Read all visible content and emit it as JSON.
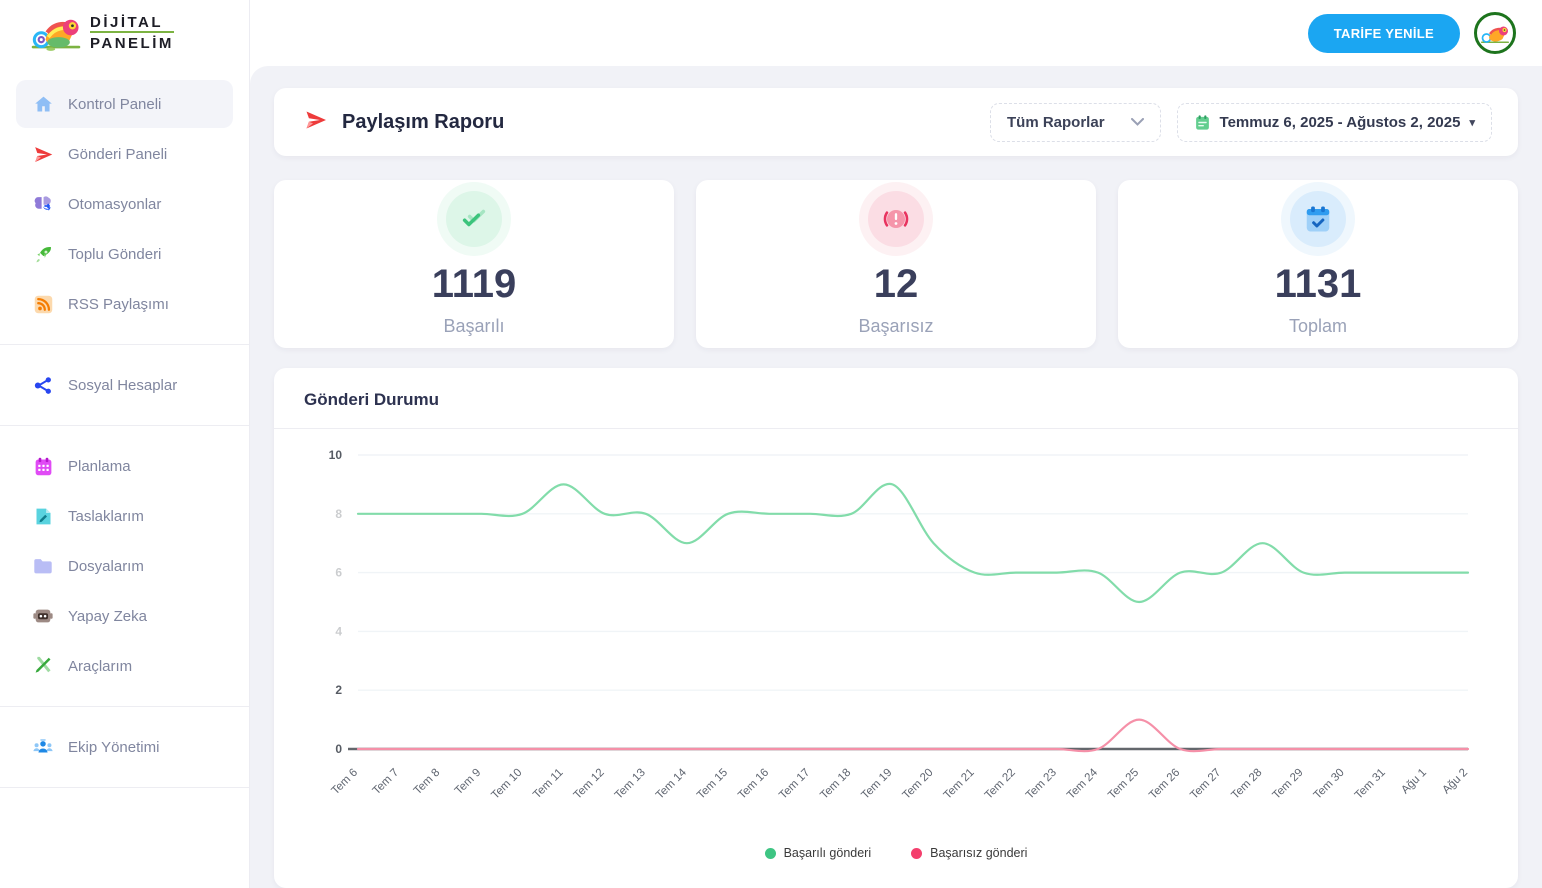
{
  "brand": {
    "line1": "DİJİTAL",
    "line2": "PANELİM"
  },
  "topbar": {
    "renew_button_label": "TARİFE YENİLE"
  },
  "sidebar": {
    "groups": [
      {
        "items": [
          {
            "label": "Kontrol Paneli",
            "icon": "home-icon",
            "active": true
          },
          {
            "label": "Gönderi Paneli",
            "icon": "paper-plane-icon"
          },
          {
            "label": "Otomasyonlar",
            "icon": "brain-automation-icon"
          },
          {
            "label": "Toplu Gönderi",
            "icon": "rocket-icon"
          },
          {
            "label": "RSS Paylaşımı",
            "icon": "rss-icon"
          }
        ]
      },
      {
        "items": [
          {
            "label": "Sosyal Hesaplar",
            "icon": "share-nodes-icon"
          }
        ]
      },
      {
        "items": [
          {
            "label": "Planlama",
            "icon": "calendar-icon"
          },
          {
            "label": "Taslaklarım",
            "icon": "draft-note-icon"
          },
          {
            "label": "Dosyalarım",
            "icon": "folder-icon"
          },
          {
            "label": "Yapay Zeka",
            "icon": "robot-icon"
          },
          {
            "label": "Araçlarım",
            "icon": "tools-icon"
          }
        ]
      },
      {
        "items": [
          {
            "label": "Ekip Yönetimi",
            "icon": "team-icon"
          }
        ]
      }
    ]
  },
  "report_header": {
    "title": "Paylaşım Raporu",
    "filter_value": "Tüm Raporlar",
    "date_range": "Temmuz 6, 2025 - Ağustos 2, 2025"
  },
  "stats": {
    "cards": [
      {
        "value": "1119",
        "label": "Başarılı",
        "icon": "double-check-icon",
        "accent": "#46c87f"
      },
      {
        "value": "12",
        "label": "Başarısız",
        "icon": "alert-icon",
        "accent": "#e8335f"
      },
      {
        "value": "1131",
        "label": "Toplam",
        "icon": "calendar-check-icon",
        "accent": "#42a5f5"
      }
    ]
  },
  "chart_data": {
    "type": "line",
    "title": "Gönderi Durumu",
    "x": [
      "Tem 6",
      "Tem 7",
      "Tem 8",
      "Tem 9",
      "Tem 10",
      "Tem 11",
      "Tem 12",
      "Tem 13",
      "Tem 14",
      "Tem 15",
      "Tem 16",
      "Tem 17",
      "Tem 18",
      "Tem 19",
      "Tem 20",
      "Tem 21",
      "Tem 22",
      "Tem 23",
      "Tem 24",
      "Tem 25",
      "Tem 26",
      "Tem 27",
      "Tem 28",
      "Tem 29",
      "Tem 30",
      "Tem 31",
      "Ağu 1",
      "Ağu 2"
    ],
    "series": [
      {
        "name": "Başarılı gönderi",
        "line_color": "#82dcaa",
        "dot_color": "#3ec583",
        "values": [
          8,
          8,
          8,
          8,
          8,
          9,
          8,
          8,
          7,
          8,
          8,
          8,
          8,
          9,
          7,
          6,
          6,
          6,
          6,
          5,
          6,
          6,
          7,
          6,
          6,
          6,
          6,
          6
        ]
      },
      {
        "name": "Başarısız gönderi",
        "line_color": "#f590a8",
        "dot_color": "#f43f6d",
        "values": [
          0,
          0,
          0,
          0,
          0,
          0,
          0,
          0,
          0,
          0,
          0,
          0,
          0,
          0,
          0,
          0,
          0,
          0,
          0,
          1,
          0,
          0,
          0,
          0,
          0,
          0,
          0,
          0
        ]
      }
    ],
    "ylim": [
      0,
      10
    ],
    "yticks": [
      0,
      2,
      4,
      6,
      8,
      10
    ],
    "faint_yticks": [
      4,
      6,
      8
    ],
    "grid": true,
    "legend_position": "bottom",
    "axis_color": "#63676c",
    "grid_color": "#f0f4f7"
  }
}
